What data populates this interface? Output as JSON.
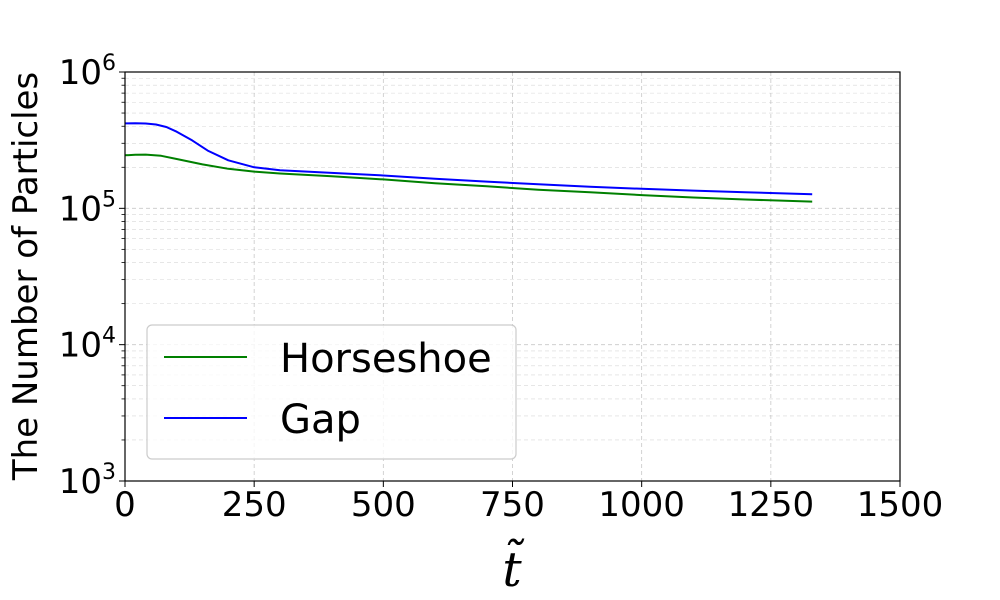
{
  "chart_data": {
    "type": "line",
    "xlabel": "t̃",
    "ylabel": "The Number of Particles",
    "xlim": [
      0,
      1500
    ],
    "ylim": [
      1000,
      1000000
    ],
    "yscale": "log",
    "grid": true,
    "legend_position": "lower-left",
    "x_ticks": [
      "0",
      "250",
      "500",
      "750",
      "1000",
      "1250",
      "1500"
    ],
    "y_ticks": [
      {
        "value": 1000,
        "base": "10",
        "exp": "3"
      },
      {
        "value": 10000,
        "base": "10",
        "exp": "4"
      },
      {
        "value": 100000,
        "base": "10",
        "exp": "5"
      },
      {
        "value": 1000000,
        "base": "10",
        "exp": "6"
      }
    ],
    "series": [
      {
        "name": "Horseshoe",
        "color": "#008000",
        "x": [
          0,
          20,
          40,
          70,
          100,
          150,
          200,
          250,
          300,
          400,
          500,
          600,
          700,
          800,
          900,
          1000,
          1100,
          1200,
          1330
        ],
        "y": [
          245000,
          247000,
          248000,
          243000,
          230000,
          210000,
          195000,
          186000,
          180000,
          172000,
          163000,
          153000,
          145000,
          137000,
          131000,
          125000,
          120000,
          116000,
          112000
        ]
      },
      {
        "name": "Gap",
        "color": "#0000ff",
        "x": [
          0,
          20,
          40,
          60,
          80,
          100,
          130,
          160,
          200,
          250,
          300,
          400,
          500,
          600,
          700,
          800,
          900,
          1000,
          1100,
          1200,
          1330
        ],
        "y": [
          420000,
          421000,
          419000,
          412000,
          395000,
          365000,
          315000,
          265000,
          225000,
          200000,
          190000,
          182000,
          174000,
          165000,
          157000,
          150000,
          144000,
          139000,
          135000,
          131000,
          127000
        ]
      }
    ]
  }
}
